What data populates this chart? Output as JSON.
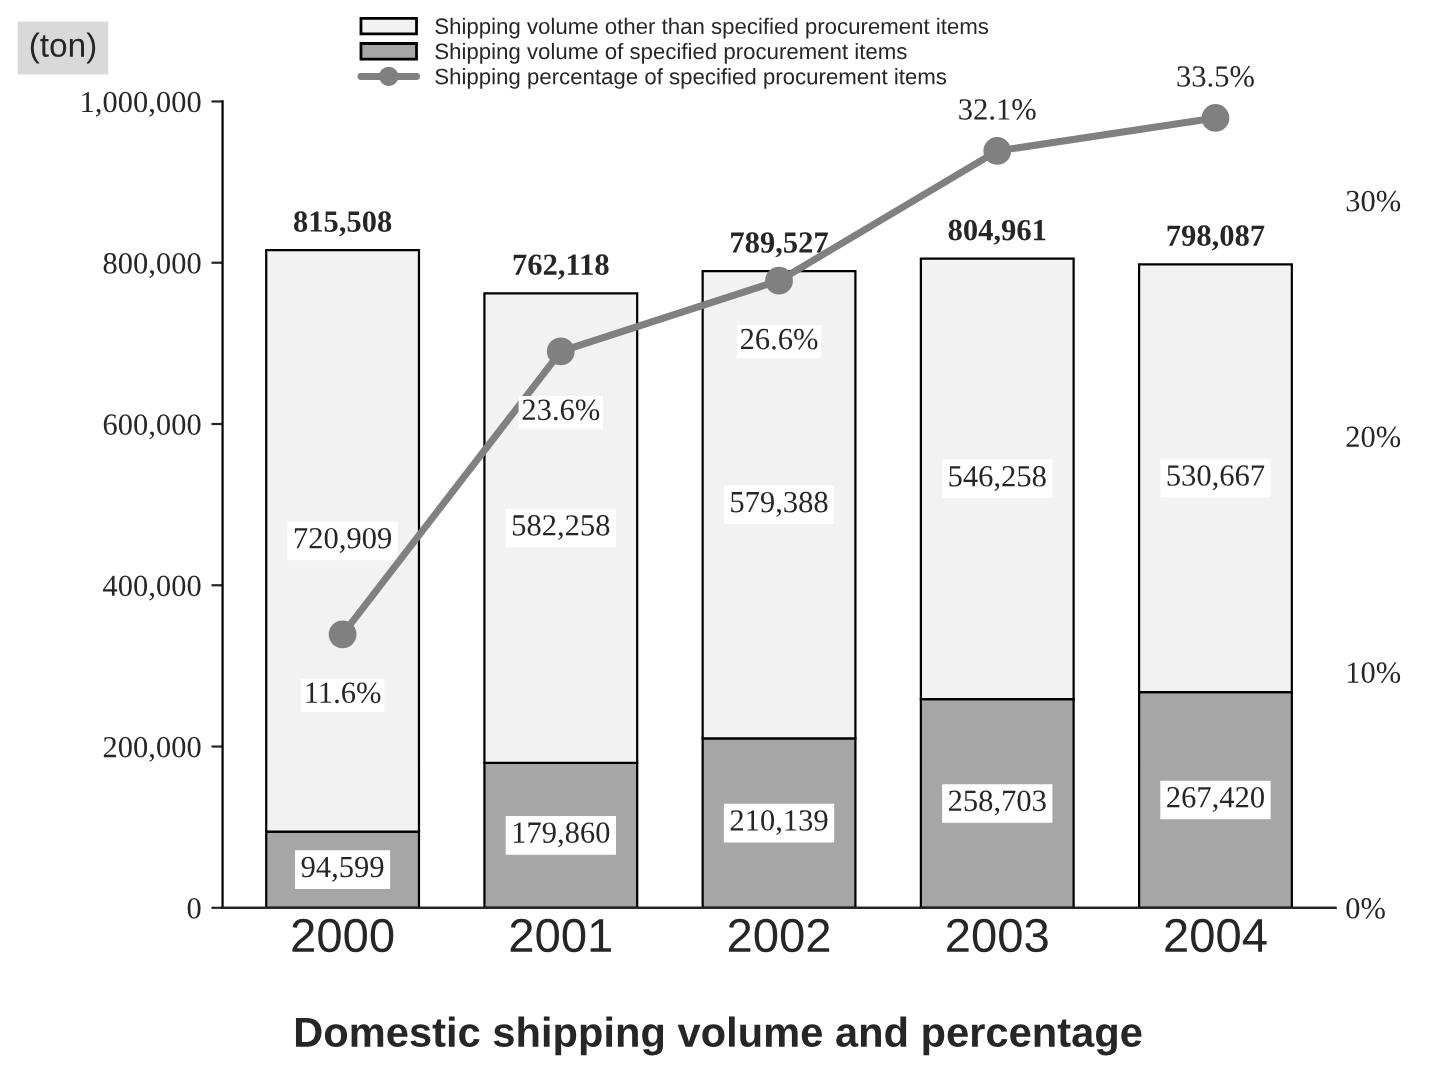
{
  "chart_data": {
    "type": "bar",
    "title": "Domestic shipping volume and percentage",
    "ylabel": "(ton)",
    "categories": [
      "2000",
      "2001",
      "2002",
      "2003",
      "2004"
    ],
    "stacked": true,
    "series": [
      {
        "name": "Shipping volume of specified procurement items",
        "color": "#a6a6a6",
        "values": [
          94599,
          179860,
          210139,
          258703,
          267420
        ],
        "value_labels": [
          "94,599",
          "179,860",
          "210,139",
          "258,703",
          "267,420"
        ]
      },
      {
        "name": "Shipping volume other than specified procurement items",
        "color": "#f2f2f2",
        "values": [
          720909,
          582258,
          579388,
          546258,
          530667
        ],
        "value_labels": [
          "720,909",
          "582,258",
          "579,388",
          "546,258",
          "530,667"
        ]
      },
      {
        "name": "Shipping percentage of specified procurement items",
        "type": "line",
        "axis": "y2",
        "color": "#808080",
        "marker": "circle",
        "values": [
          11.6,
          23.6,
          26.6,
          32.1,
          33.5
        ],
        "value_labels": [
          "11.6%",
          "23.6%",
          "26.6%",
          "32.1%",
          "33.5%"
        ]
      }
    ],
    "totals": [
      "815,508",
      "762,118",
      "789,527",
      "804,961",
      "798,087"
    ],
    "ylim": [
      0,
      1000000
    ],
    "yticks": [
      {
        "value": 0,
        "label": "0"
      },
      {
        "value": 200000,
        "label": "200,000"
      },
      {
        "value": 400000,
        "label": "400,000"
      },
      {
        "value": 600000,
        "label": "600,000"
      },
      {
        "value": 800000,
        "label": "800,000"
      },
      {
        "value": 1000000,
        "label": "1,000,000"
      }
    ],
    "y2lim": [
      0,
      34.2
    ],
    "y2ticks": [
      {
        "value": 0,
        "label": "0%"
      },
      {
        "value": 10,
        "label": "10%"
      },
      {
        "value": 20,
        "label": "20%"
      },
      {
        "value": 30,
        "label": "30%"
      }
    ],
    "legend": "top",
    "grid": false
  }
}
